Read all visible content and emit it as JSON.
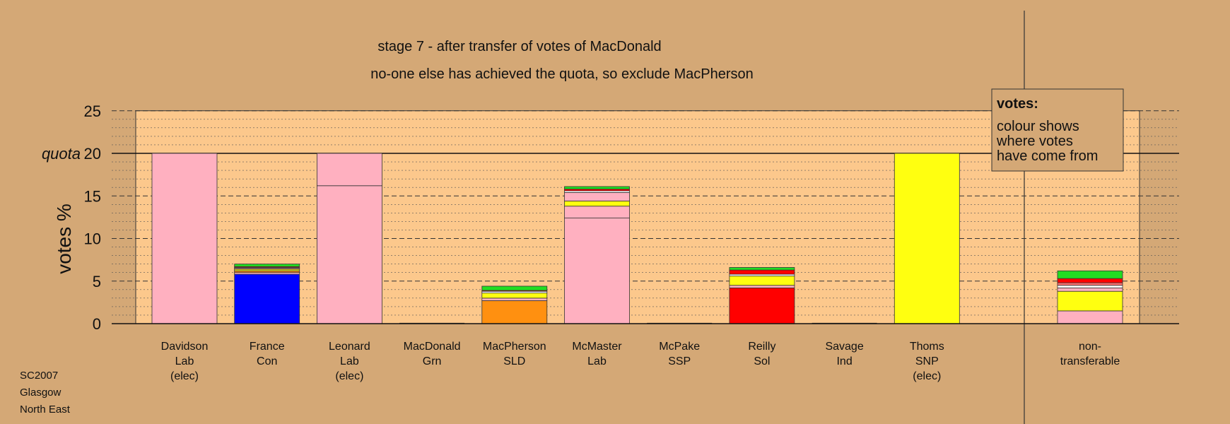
{
  "title": "stage 7 - after transfer of votes of MacDonald",
  "subtitle": "no-one else has achieved the quota, so exclude MacPherson",
  "footer": [
    "SC2007",
    "Glasgow",
    "North East"
  ],
  "legend": {
    "heading": "votes:",
    "lines": [
      "colour shows",
      "where votes",
      "have come from"
    ]
  },
  "colors": {
    "background": "#D4A876",
    "plot_area": "#FCC88C",
    "Lab": "#FFB0C0",
    "Con": "#0000FF",
    "Grn": "#22DD22",
    "SLD": "#FF9010",
    "SSP": "#FF7070",
    "Sol": "#FF0000",
    "Ind": "#FFFFFF",
    "SNP": "#FFFF10"
  },
  "chart_data": {
    "type": "bar",
    "stacked": true,
    "ylabel": "votes %",
    "ylim": [
      0,
      25
    ],
    "yticks": [
      0,
      5,
      10,
      15,
      20,
      25
    ],
    "quota": 20,
    "quota_label": "quota",
    "grid": true,
    "legend_position": "top-right",
    "categories": [
      {
        "name": [
          "Davidson",
          "Lab",
          "(elec)"
        ],
        "segments": [
          {
            "from": "Lab",
            "value": 20.0
          }
        ]
      },
      {
        "name": [
          "France",
          "Con"
        ],
        "segments": [
          {
            "from": "Con",
            "value": 5.8
          },
          {
            "from": "Lab",
            "value": 0.2
          },
          {
            "from": "SLD",
            "value": 0.2
          },
          {
            "from": "SNP",
            "value": 0.2
          },
          {
            "from": "SSP",
            "value": 0.1
          },
          {
            "from": "Ind",
            "value": 0.1
          },
          {
            "from": "Sol",
            "value": 0.1
          },
          {
            "from": "Grn",
            "value": 0.3
          }
        ]
      },
      {
        "name": [
          "Leonard",
          "Lab",
          "(elec)"
        ],
        "segments": [
          {
            "from": "Lab",
            "value": 16.2
          },
          {
            "from": "Lab",
            "value": 3.8
          }
        ]
      },
      {
        "name": [
          "MacDonald",
          "Grn"
        ],
        "segments": []
      },
      {
        "name": [
          "MacPherson",
          "SLD"
        ],
        "segments": [
          {
            "from": "SLD",
            "value": 2.7
          },
          {
            "from": "Lab",
            "value": 0.3
          },
          {
            "from": "SNP",
            "value": 0.6
          },
          {
            "from": "Ind",
            "value": 0.2
          },
          {
            "from": "Sol",
            "value": 0.1
          },
          {
            "from": "Grn",
            "value": 0.5
          }
        ]
      },
      {
        "name": [
          "McMaster",
          "Lab"
        ],
        "segments": [
          {
            "from": "Lab",
            "value": 12.4
          },
          {
            "from": "Lab",
            "value": 1.4
          },
          {
            "from": "SNP",
            "value": 0.6
          },
          {
            "from": "Lab",
            "value": 1.0
          },
          {
            "from": "Ind",
            "value": 0.2
          },
          {
            "from": "Sol",
            "value": 0.2
          },
          {
            "from": "Grn",
            "value": 0.3
          }
        ]
      },
      {
        "name": [
          "McPake",
          "SSP"
        ],
        "segments": []
      },
      {
        "name": [
          "Reilly",
          "Sol"
        ],
        "segments": [
          {
            "from": "Sol",
            "value": 4.2
          },
          {
            "from": "Lab",
            "value": 0.3
          },
          {
            "from": "SNP",
            "value": 1.1
          },
          {
            "from": "Ind",
            "value": 0.2
          },
          {
            "from": "Sol",
            "value": 0.5
          },
          {
            "from": "Grn",
            "value": 0.3
          }
        ]
      },
      {
        "name": [
          "Savage",
          "Ind"
        ],
        "segments": []
      },
      {
        "name": [
          "Thoms",
          "SNP",
          "(elec)"
        ],
        "segments": [
          {
            "from": "SNP",
            "value": 20.0
          }
        ]
      },
      {
        "name": [
          "non-",
          "transferable"
        ],
        "segments": [
          {
            "from": "Lab",
            "value": 1.5
          },
          {
            "from": "SNP",
            "value": 2.3
          },
          {
            "from": "Lab",
            "value": 0.4
          },
          {
            "from": "Ind",
            "value": 0.3
          },
          {
            "from": "SSP",
            "value": 0.3
          },
          {
            "from": "Sol",
            "value": 0.5
          },
          {
            "from": "Grn",
            "value": 0.9
          }
        ]
      }
    ]
  }
}
